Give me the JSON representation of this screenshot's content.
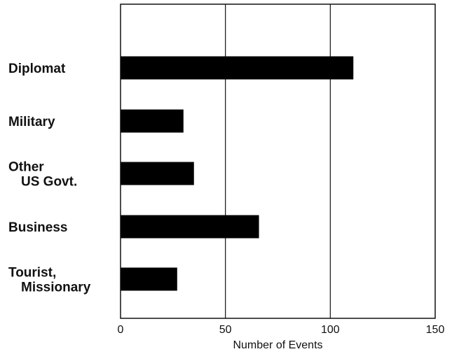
{
  "chart_data": {
    "type": "bar",
    "orientation": "horizontal",
    "categories": [
      [
        "Diplomat"
      ],
      [
        "Military"
      ],
      [
        "Other",
        "US Govt."
      ],
      [
        "Business"
      ],
      [
        "Tourist,",
        "Missionary"
      ]
    ],
    "values": [
      111,
      30,
      35,
      66,
      27
    ],
    "xlabel": "Number of Events",
    "xlim": [
      0,
      150
    ],
    "xticks": [
      0,
      50,
      100,
      150
    ],
    "grid": "vertical lines at each tick",
    "bar_color": "#000000"
  }
}
